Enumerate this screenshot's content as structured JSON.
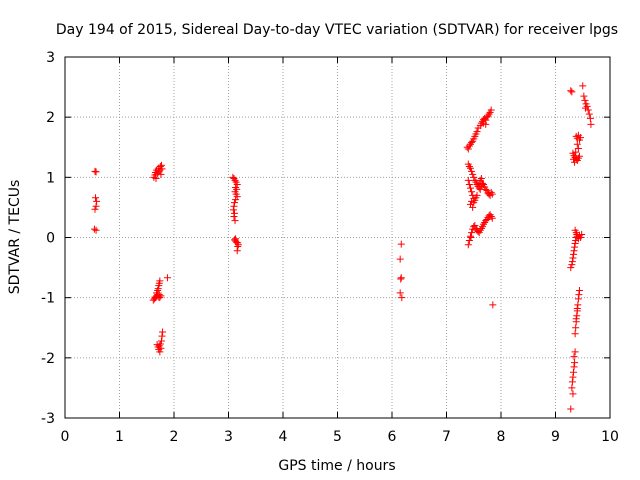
{
  "chart_data": {
    "type": "scatter",
    "title": "Day 194 of 2015, Sidereal Day-to-day VTEC variation (SDTVAR) for receiver lpgs",
    "xlabel": "GPS time / hours",
    "ylabel": "SDTVAR / TECUs",
    "xlim": [
      0,
      10
    ],
    "ylim": [
      -3,
      3
    ],
    "xticks": [
      "0",
      "1",
      "2",
      "3",
      "4",
      "5",
      "6",
      "7",
      "8",
      "9",
      "10"
    ],
    "yticks": [
      "-3",
      "-2",
      "-1",
      "0",
      "1",
      "2",
      "3"
    ],
    "grid": true,
    "marker": "+",
    "color": "#ff0000",
    "series": [
      {
        "name": "SDTVAR",
        "points": [
          [
            0.55,
            1.1
          ],
          [
            0.57,
            1.09
          ],
          [
            0.56,
            0.66
          ],
          [
            0.58,
            0.6
          ],
          [
            0.57,
            0.52
          ],
          [
            0.55,
            0.47
          ],
          [
            0.54,
            0.14
          ],
          [
            0.57,
            0.12
          ],
          [
            1.62,
            -1.04
          ],
          [
            1.64,
            -1.02
          ],
          [
            1.66,
            -1.0
          ],
          [
            1.68,
            -0.97
          ],
          [
            1.7,
            -0.95
          ],
          [
            1.72,
            -0.99
          ],
          [
            1.74,
            -1.0
          ],
          [
            1.76,
            -0.97
          ],
          [
            1.68,
            -0.92
          ],
          [
            1.7,
            -0.88
          ],
          [
            1.71,
            -0.85
          ],
          [
            1.72,
            -0.8
          ],
          [
            1.73,
            -0.76
          ],
          [
            1.74,
            -0.72
          ],
          [
            1.65,
            -0.99
          ],
          [
            1.73,
            -0.95
          ],
          [
            1.69,
            -1.78
          ],
          [
            1.71,
            -1.82
          ],
          [
            1.72,
            -1.86
          ],
          [
            1.74,
            -1.9
          ],
          [
            1.76,
            -1.84
          ],
          [
            1.77,
            -1.72
          ],
          [
            1.78,
            -1.64
          ],
          [
            1.79,
            -1.57
          ],
          [
            1.73,
            -1.8
          ],
          [
            1.75,
            -1.77
          ],
          [
            1.88,
            -0.67
          ],
          [
            1.63,
            1.0
          ],
          [
            1.65,
            1.04
          ],
          [
            1.66,
            1.08
          ],
          [
            1.68,
            1.12
          ],
          [
            1.7,
            1.06
          ],
          [
            1.71,
            1.15
          ],
          [
            1.72,
            1.09
          ],
          [
            1.74,
            1.12
          ],
          [
            1.75,
            1.18
          ],
          [
            1.77,
            1.2
          ],
          [
            1.78,
            1.14
          ],
          [
            1.76,
            1.05
          ],
          [
            1.67,
            0.98
          ],
          [
            3.08,
            1.0
          ],
          [
            3.1,
            0.98
          ],
          [
            3.12,
            0.95
          ],
          [
            3.14,
            0.92
          ],
          [
            3.16,
            0.88
          ],
          [
            3.13,
            0.83
          ],
          [
            3.15,
            0.8
          ],
          [
            3.12,
            0.76
          ],
          [
            3.14,
            0.72
          ],
          [
            3.16,
            0.68
          ],
          [
            3.13,
            0.63
          ],
          [
            3.11,
            0.58
          ],
          [
            3.1,
            0.52
          ],
          [
            3.09,
            0.46
          ],
          [
            3.11,
            0.4
          ],
          [
            3.1,
            0.35
          ],
          [
            3.12,
            0.28
          ],
          [
            3.11,
            -0.04
          ],
          [
            3.13,
            -0.06
          ],
          [
            3.15,
            -0.08
          ],
          [
            3.17,
            -0.09
          ],
          [
            3.18,
            -0.12
          ],
          [
            3.17,
            -0.15
          ],
          [
            3.16,
            -0.22
          ],
          [
            3.13,
            -0.02
          ],
          [
            6.17,
            -0.11
          ],
          [
            6.15,
            -0.36
          ],
          [
            6.17,
            -0.67
          ],
          [
            6.16,
            -0.69
          ],
          [
            6.15,
            -0.92
          ],
          [
            6.18,
            -1.0
          ],
          [
            7.38,
            1.5
          ],
          [
            7.4,
            1.47
          ],
          [
            7.42,
            1.52
          ],
          [
            7.44,
            1.55
          ],
          [
            7.46,
            1.58
          ],
          [
            7.48,
            1.6
          ],
          [
            7.5,
            1.64
          ],
          [
            7.52,
            1.68
          ],
          [
            7.54,
            1.72
          ],
          [
            7.56,
            1.76
          ],
          [
            7.58,
            1.82
          ],
          [
            7.62,
            1.86
          ],
          [
            7.64,
            1.9
          ],
          [
            7.66,
            1.93
          ],
          [
            7.68,
            1.96
          ],
          [
            7.7,
            1.98
          ],
          [
            7.72,
            1.95
          ],
          [
            7.74,
            2.0
          ],
          [
            7.76,
            2.02
          ],
          [
            7.78,
            2.05
          ],
          [
            7.8,
            2.08
          ],
          [
            7.82,
            2.12
          ],
          [
            7.68,
            1.9
          ],
          [
            7.72,
            1.88
          ],
          [
            7.4,
            1.22
          ],
          [
            7.42,
            1.18
          ],
          [
            7.44,
            1.15
          ],
          [
            7.46,
            1.1
          ],
          [
            7.48,
            1.05
          ],
          [
            7.5,
            1.0
          ],
          [
            7.52,
            0.95
          ],
          [
            7.54,
            0.92
          ],
          [
            7.56,
            0.88
          ],
          [
            7.58,
            0.85
          ],
          [
            7.6,
            0.82
          ],
          [
            7.62,
            0.8
          ],
          [
            7.64,
            0.86
          ],
          [
            7.66,
            0.9
          ],
          [
            7.68,
            0.88
          ],
          [
            7.7,
            0.84
          ],
          [
            7.72,
            0.8
          ],
          [
            7.74,
            0.78
          ],
          [
            7.76,
            0.74
          ],
          [
            7.78,
            0.72
          ],
          [
            7.8,
            0.7
          ],
          [
            7.82,
            0.75
          ],
          [
            7.84,
            0.72
          ],
          [
            7.62,
            0.95
          ],
          [
            7.6,
            0.9
          ],
          [
            7.64,
            0.98
          ],
          [
            7.4,
            0.95
          ],
          [
            7.42,
            0.88
          ],
          [
            7.44,
            0.82
          ],
          [
            7.46,
            0.76
          ],
          [
            7.48,
            0.7
          ],
          [
            7.5,
            0.65
          ],
          [
            7.46,
            0.6
          ],
          [
            7.44,
            0.55
          ],
          [
            7.48,
            0.5
          ],
          [
            7.5,
            0.58
          ],
          [
            7.52,
            0.62
          ],
          [
            7.54,
            0.66
          ],
          [
            7.56,
            0.7
          ],
          [
            7.4,
            -0.12
          ],
          [
            7.42,
            -0.05
          ],
          [
            7.44,
            0.02
          ],
          [
            7.46,
            0.08
          ],
          [
            7.48,
            0.14
          ],
          [
            7.5,
            0.18
          ],
          [
            7.52,
            0.2
          ],
          [
            7.54,
            0.15
          ],
          [
            7.56,
            0.12
          ],
          [
            7.58,
            0.1
          ],
          [
            7.6,
            0.08
          ],
          [
            7.62,
            0.12
          ],
          [
            7.64,
            0.15
          ],
          [
            7.66,
            0.18
          ],
          [
            7.68,
            0.22
          ],
          [
            7.7,
            0.25
          ],
          [
            7.72,
            0.28
          ],
          [
            7.74,
            0.3
          ],
          [
            7.76,
            0.33
          ],
          [
            7.78,
            0.36
          ],
          [
            7.8,
            0.38
          ],
          [
            7.82,
            0.35
          ],
          [
            7.84,
            0.32
          ],
          [
            7.45,
            0.0
          ],
          [
            7.85,
            -1.12
          ],
          [
            9.28,
            2.44
          ],
          [
            9.3,
            2.42
          ],
          [
            9.5,
            2.52
          ],
          [
            9.52,
            2.35
          ],
          [
            9.54,
            2.28
          ],
          [
            9.56,
            2.22
          ],
          [
            9.58,
            2.18
          ],
          [
            9.6,
            2.12
          ],
          [
            9.62,
            2.05
          ],
          [
            9.64,
            1.98
          ],
          [
            9.65,
            1.88
          ],
          [
            9.55,
            2.15
          ],
          [
            9.38,
            1.68
          ],
          [
            9.4,
            1.65
          ],
          [
            9.42,
            1.7
          ],
          [
            9.44,
            1.62
          ],
          [
            9.46,
            1.66
          ],
          [
            9.4,
            1.55
          ],
          [
            9.42,
            1.48
          ],
          [
            9.32,
            1.4
          ],
          [
            9.34,
            1.36
          ],
          [
            9.36,
            1.33
          ],
          [
            9.38,
            1.3
          ],
          [
            9.4,
            1.28
          ],
          [
            9.42,
            1.32
          ],
          [
            9.35,
            1.25
          ],
          [
            9.33,
            1.3
          ],
          [
            9.37,
            1.42
          ],
          [
            9.44,
            1.35
          ],
          [
            9.28,
            -0.5
          ],
          [
            9.3,
            -0.45
          ],
          [
            9.31,
            -0.4
          ],
          [
            9.32,
            -0.34
          ],
          [
            9.33,
            -0.28
          ],
          [
            9.34,
            -0.22
          ],
          [
            9.35,
            -0.16
          ],
          [
            9.36,
            -0.1
          ],
          [
            9.37,
            -0.05
          ],
          [
            9.38,
            0.0
          ],
          [
            9.39,
            0.05
          ],
          [
            9.4,
            0.02
          ],
          [
            9.42,
            -0.02
          ],
          [
            9.44,
            0.04
          ],
          [
            9.46,
            0.0
          ],
          [
            9.48,
            0.05
          ],
          [
            9.36,
            0.12
          ],
          [
            9.38,
            0.08
          ],
          [
            9.36,
            -1.6
          ],
          [
            9.37,
            -1.5
          ],
          [
            9.38,
            -1.4
          ],
          [
            9.39,
            -1.3
          ],
          [
            9.4,
            -1.22
          ],
          [
            9.41,
            -1.12
          ],
          [
            9.42,
            -1.02
          ],
          [
            9.43,
            -0.95
          ],
          [
            9.44,
            -0.88
          ],
          [
            9.38,
            -1.35
          ],
          [
            9.4,
            -1.18
          ],
          [
            9.3,
            -2.5
          ],
          [
            9.31,
            -2.4
          ],
          [
            9.32,
            -2.32
          ],
          [
            9.33,
            -2.24
          ],
          [
            9.34,
            -2.15
          ],
          [
            9.35,
            -2.08
          ],
          [
            9.34,
            -1.98
          ],
          [
            9.36,
            -1.9
          ],
          [
            9.28,
            -2.85
          ],
          [
            9.32,
            -2.6
          ]
        ]
      }
    ]
  }
}
